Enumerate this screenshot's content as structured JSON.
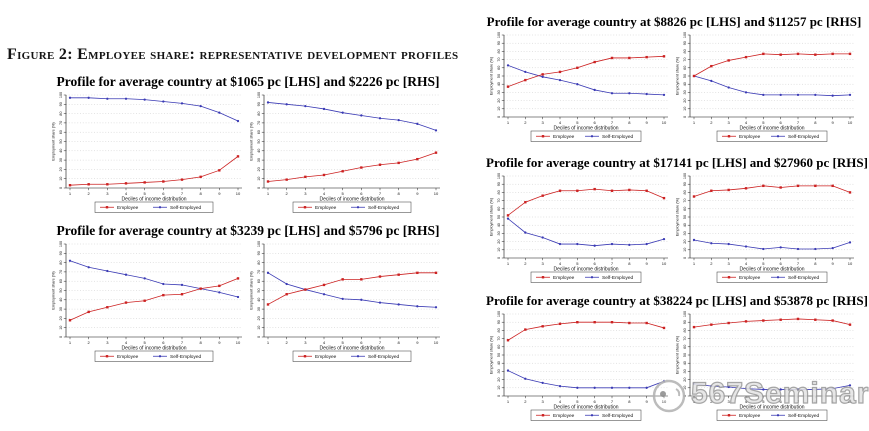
{
  "figure_caption": "Figure 2: Employee share: representative development profiles",
  "watermark": {
    "text": "567Seminar"
  },
  "chart_data": {
    "type": "line",
    "x": [
      1,
      2,
      3,
      4,
      5,
      6,
      7,
      8,
      9,
      10
    ],
    "xlabel": "Deciles of income distribution",
    "ylabel": "Employment share (%)",
    "ylim": [
      0,
      100
    ],
    "yticks": [
      0,
      10,
      20,
      30,
      40,
      50,
      60,
      70,
      80,
      90,
      100
    ],
    "grid": "horizontal-dotted",
    "legend": {
      "position": "bottom",
      "entries": [
        "Employee",
        "Self-Employed"
      ]
    },
    "colors": {
      "employee": "#cc2222",
      "self_employed": "#3a3ab4",
      "grid": "#c9c9c9",
      "axis": "#111111"
    },
    "groups": [
      {
        "title": "Profile for average country at $1065 pc [LHS] and $2226 pc [RHS]",
        "column": "left",
        "panels": [
          {
            "label": "LHS",
            "employee": [
              3,
              4,
              4,
              5,
              6,
              7,
              9,
              12,
              19,
              34
            ],
            "self_employed": [
              97,
              97,
              96,
              96,
              95,
              93,
              91,
              88,
              81,
              72
            ]
          },
          {
            "label": "RHS",
            "employee": [
              7,
              9,
              12,
              14,
              18,
              22,
              25,
              27,
              31,
              38
            ],
            "self_employed": [
              92,
              90,
              88,
              85,
              81,
              78,
              75,
              73,
              69,
              62
            ]
          }
        ]
      },
      {
        "title": "Profile for average country at $3239 pc [LHS] and $5796 pc [RHS]",
        "column": "left",
        "panels": [
          {
            "label": "LHS",
            "employee": [
              18,
              27,
              32,
              37,
              39,
              45,
              46,
              52,
              55,
              63
            ],
            "self_employed": [
              82,
              75,
              71,
              67,
              63,
              57,
              56,
              52,
              48,
              43
            ]
          },
          {
            "label": "RHS",
            "employee": [
              35,
              46,
              51,
              56,
              62,
              62,
              65,
              67,
              69,
              69
            ],
            "self_employed": [
              69,
              57,
              51,
              46,
              41,
              40,
              37,
              35,
              33,
              32
            ]
          }
        ]
      },
      {
        "title": "Profile for average country at $8826 pc [LHS] and $11257 pc [RHS]",
        "column": "right",
        "panels": [
          {
            "label": "LHS",
            "employee": [
              37,
              45,
              52,
              55,
              60,
              67,
              72,
              72,
              73,
              74
            ],
            "self_employed": [
              63,
              55,
              49,
              45,
              40,
              33,
              29,
              29,
              28,
              27
            ]
          },
          {
            "label": "RHS",
            "employee": [
              50,
              62,
              69,
              73,
              77,
              76,
              77,
              76,
              77,
              77
            ],
            "self_employed": [
              50,
              44,
              36,
              30,
              27,
              27,
              27,
              27,
              26,
              27
            ]
          }
        ]
      },
      {
        "title": "Profile for average country at $17141 pc [LHS] and $27960 pc [RHS]",
        "column": "right",
        "panels": [
          {
            "label": "LHS",
            "employee": [
              52,
              68,
              76,
              82,
              82,
              84,
              82,
              83,
              82,
              73
            ],
            "self_employed": [
              48,
              31,
              25,
              17,
              17,
              15,
              17,
              16,
              17,
              23
            ]
          },
          {
            "label": "RHS",
            "employee": [
              75,
              82,
              83,
              85,
              88,
              86,
              88,
              88,
              88,
              80
            ],
            "self_employed": [
              22,
              18,
              17,
              14,
              11,
              13,
              11,
              11,
              12,
              19
            ]
          }
        ]
      },
      {
        "title": "Profile for average country at $38224 pc [LHS] and $53878 pc [RHS]",
        "column": "right",
        "panels": [
          {
            "label": "LHS",
            "employee": [
              68,
              81,
              85,
              88,
              90,
              90,
              90,
              89,
              89,
              83
            ],
            "self_employed": [
              31,
              21,
              16,
              12,
              10,
              10,
              10,
              10,
              10,
              18
            ]
          },
          {
            "label": "RHS",
            "employee": [
              84,
              87,
              89,
              91,
              92,
              93,
              94,
              93,
              92,
              87
            ],
            "self_employed": [
              15,
              12,
              11,
              9,
              8,
              8,
              8,
              8,
              9,
              13
            ]
          }
        ]
      }
    ]
  }
}
